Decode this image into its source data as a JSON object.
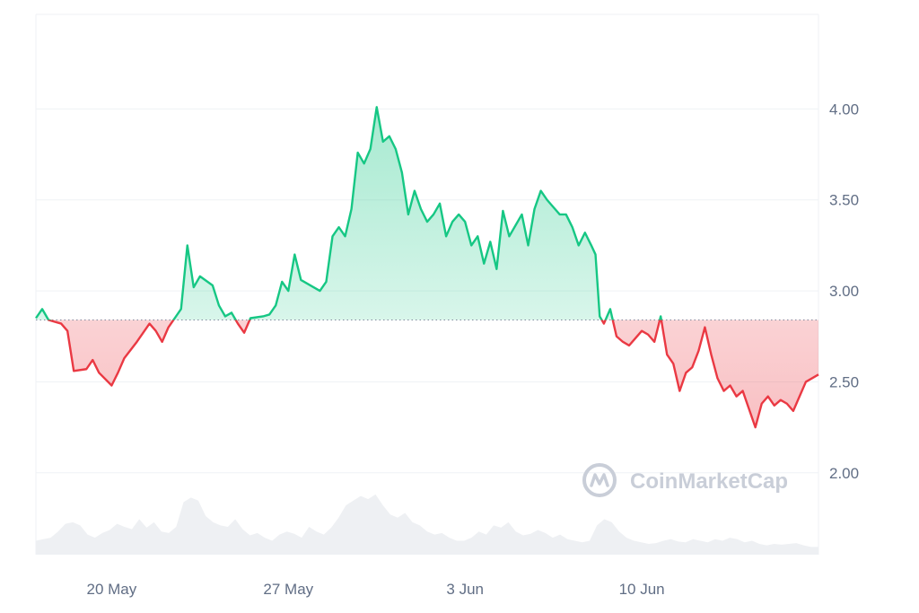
{
  "colors": {
    "up": "#16c784",
    "down": "#ea3943",
    "up_fill_top": "#16c784",
    "down_fill_bottom": "#ea3943",
    "grid": "#eff2f5",
    "baseline": "#808a9d",
    "volume": "#eef0f3",
    "axis_text": "#616e85",
    "watermark": "#c9ced8"
  },
  "watermark": {
    "text": "CoinMarketCap",
    "icon": "coinmarketcap-logo-icon"
  },
  "chart_data": {
    "type": "area",
    "title": "",
    "xlabel": "",
    "ylabel": "",
    "y_axis_position": "right",
    "ylim": [
      1.55,
      4.52
    ],
    "xlim": [
      "2024-05-17",
      "2024-06-17"
    ],
    "baseline": 2.84,
    "grid": true,
    "y_ticks": [
      2.0,
      2.5,
      3.0,
      3.5,
      4.0
    ],
    "y_tick_labels": [
      "2.00",
      "2.50",
      "3.00",
      "3.50",
      "4.00"
    ],
    "x_ticks": [
      {
        "date": "2024-05-20",
        "label": "20 May"
      },
      {
        "date": "2024-05-27",
        "label": "27 May"
      },
      {
        "date": "2024-06-03",
        "label": "3 Jun"
      },
      {
        "date": "2024-06-10",
        "label": "10 Jun"
      }
    ],
    "series": [
      {
        "values": [
          [
            "2024-05-17",
            2.85
          ],
          [
            "2024-05-17T06",
            2.9
          ],
          [
            "2024-05-17T12",
            2.84
          ],
          [
            "2024-05-18",
            2.82
          ],
          [
            "2024-05-18T06",
            2.78
          ],
          [
            "2024-05-18T12",
            2.56
          ],
          [
            "2024-05-19",
            2.57
          ],
          [
            "2024-05-19T06",
            2.62
          ],
          [
            "2024-05-19T12",
            2.55
          ],
          [
            "2024-05-20",
            2.48
          ],
          [
            "2024-05-20T06",
            2.55
          ],
          [
            "2024-05-20T12",
            2.63
          ],
          [
            "2024-05-21",
            2.72
          ],
          [
            "2024-05-21T06",
            2.77
          ],
          [
            "2024-05-21T12",
            2.82
          ],
          [
            "2024-05-21T18",
            2.78
          ],
          [
            "2024-05-22",
            2.72
          ],
          [
            "2024-05-22T06",
            2.8
          ],
          [
            "2024-05-22T12",
            2.85
          ],
          [
            "2024-05-22T18",
            2.9
          ],
          [
            "2024-05-23",
            3.25
          ],
          [
            "2024-05-23T06",
            3.02
          ],
          [
            "2024-05-23T12",
            3.08
          ],
          [
            "2024-05-24",
            3.03
          ],
          [
            "2024-05-24T06",
            2.92
          ],
          [
            "2024-05-24T12",
            2.86
          ],
          [
            "2024-05-24T18",
            2.88
          ],
          [
            "2024-05-25",
            2.82
          ],
          [
            "2024-05-25T06",
            2.77
          ],
          [
            "2024-05-25T12",
            2.85
          ],
          [
            "2024-05-26",
            2.86
          ],
          [
            "2024-05-26T06",
            2.87
          ],
          [
            "2024-05-26T12",
            2.92
          ],
          [
            "2024-05-26T18",
            3.05
          ],
          [
            "2024-05-27",
            3.0
          ],
          [
            "2024-05-27T06",
            3.2
          ],
          [
            "2024-05-27T12",
            3.06
          ],
          [
            "2024-05-28",
            3.02
          ],
          [
            "2024-05-28T06",
            3.0
          ],
          [
            "2024-05-28T12",
            3.05
          ],
          [
            "2024-05-28T18",
            3.3
          ],
          [
            "2024-05-29",
            3.35
          ],
          [
            "2024-05-29T06",
            3.3
          ],
          [
            "2024-05-29T12",
            3.45
          ],
          [
            "2024-05-29T18",
            3.76
          ],
          [
            "2024-05-30",
            3.7
          ],
          [
            "2024-05-30T06",
            3.78
          ],
          [
            "2024-05-30T12",
            4.01
          ],
          [
            "2024-05-30T18",
            3.82
          ],
          [
            "2024-05-31",
            3.85
          ],
          [
            "2024-05-31T06",
            3.78
          ],
          [
            "2024-05-31T12",
            3.65
          ],
          [
            "2024-05-31T18",
            3.42
          ],
          [
            "2024-06-01",
            3.55
          ],
          [
            "2024-06-01T06",
            3.45
          ],
          [
            "2024-06-01T12",
            3.38
          ],
          [
            "2024-06-01T18",
            3.42
          ],
          [
            "2024-06-02",
            3.48
          ],
          [
            "2024-06-02T06",
            3.3
          ],
          [
            "2024-06-02T12",
            3.38
          ],
          [
            "2024-06-02T18",
            3.42
          ],
          [
            "2024-06-03",
            3.38
          ],
          [
            "2024-06-03T06",
            3.25
          ],
          [
            "2024-06-03T12",
            3.3
          ],
          [
            "2024-06-03T18",
            3.15
          ],
          [
            "2024-06-04",
            3.27
          ],
          [
            "2024-06-04T06",
            3.12
          ],
          [
            "2024-06-04T12",
            3.44
          ],
          [
            "2024-06-04T18",
            3.3
          ],
          [
            "2024-06-05",
            3.36
          ],
          [
            "2024-06-05T06",
            3.42
          ],
          [
            "2024-06-05T12",
            3.25
          ],
          [
            "2024-06-05T18",
            3.45
          ],
          [
            "2024-06-06",
            3.55
          ],
          [
            "2024-06-06T06",
            3.5
          ],
          [
            "2024-06-06T12",
            3.46
          ],
          [
            "2024-06-06T18",
            3.42
          ],
          [
            "2024-06-07",
            3.42
          ],
          [
            "2024-06-07T06",
            3.35
          ],
          [
            "2024-06-07T12",
            3.25
          ],
          [
            "2024-06-07T18",
            3.32
          ],
          [
            "2024-06-08",
            3.25
          ],
          [
            "2024-06-08T04",
            3.2
          ],
          [
            "2024-06-08T08",
            2.86
          ],
          [
            "2024-06-08T12",
            2.82
          ],
          [
            "2024-06-08T18",
            2.9
          ],
          [
            "2024-06-09",
            2.75
          ],
          [
            "2024-06-09T06",
            2.72
          ],
          [
            "2024-06-09T12",
            2.7
          ],
          [
            "2024-06-09T18",
            2.74
          ],
          [
            "2024-06-10",
            2.78
          ],
          [
            "2024-06-10T06",
            2.76
          ],
          [
            "2024-06-10T12",
            2.72
          ],
          [
            "2024-06-10T18",
            2.86
          ],
          [
            "2024-06-11",
            2.65
          ],
          [
            "2024-06-11T06",
            2.6
          ],
          [
            "2024-06-11T12",
            2.45
          ],
          [
            "2024-06-11T18",
            2.55
          ],
          [
            "2024-06-12",
            2.58
          ],
          [
            "2024-06-12T06",
            2.67
          ],
          [
            "2024-06-12T12",
            2.8
          ],
          [
            "2024-06-12T18",
            2.65
          ],
          [
            "2024-06-13",
            2.52
          ],
          [
            "2024-06-13T06",
            2.45
          ],
          [
            "2024-06-13T12",
            2.48
          ],
          [
            "2024-06-13T18",
            2.42
          ],
          [
            "2024-06-14",
            2.45
          ],
          [
            "2024-06-14T06",
            2.35
          ],
          [
            "2024-06-14T12",
            2.25
          ],
          [
            "2024-06-14T18",
            2.38
          ],
          [
            "2024-06-15",
            2.42
          ],
          [
            "2024-06-15T06",
            2.37
          ],
          [
            "2024-06-15T12",
            2.4
          ],
          [
            "2024-06-15T18",
            2.38
          ],
          [
            "2024-06-16",
            2.34
          ],
          [
            "2024-06-16T06",
            2.42
          ],
          [
            "2024-06-16T12",
            2.5
          ],
          [
            "2024-06-17",
            2.54
          ]
        ]
      }
    ],
    "volume": [
      0.18,
      0.2,
      0.22,
      0.3,
      0.4,
      0.42,
      0.38,
      0.26,
      0.22,
      0.28,
      0.32,
      0.4,
      0.36,
      0.33,
      0.46,
      0.35,
      0.42,
      0.3,
      0.28,
      0.36,
      0.68,
      0.74,
      0.7,
      0.5,
      0.42,
      0.38,
      0.36,
      0.46,
      0.33,
      0.25,
      0.28,
      0.22,
      0.18,
      0.26,
      0.3,
      0.27,
      0.22,
      0.36,
      0.3,
      0.26,
      0.35,
      0.48,
      0.64,
      0.7,
      0.76,
      0.72,
      0.78,
      0.64,
      0.52,
      0.48,
      0.54,
      0.42,
      0.38,
      0.3,
      0.26,
      0.28,
      0.22,
      0.18,
      0.18,
      0.22,
      0.3,
      0.26,
      0.38,
      0.35,
      0.42,
      0.3,
      0.25,
      0.27,
      0.32,
      0.28,
      0.22,
      0.26,
      0.2,
      0.18,
      0.16,
      0.18,
      0.38,
      0.46,
      0.42,
      0.3,
      0.22,
      0.18,
      0.16,
      0.14,
      0.15,
      0.18,
      0.2,
      0.17,
      0.16,
      0.2,
      0.18,
      0.16,
      0.2,
      0.18,
      0.22,
      0.2,
      0.16,
      0.18,
      0.14,
      0.12,
      0.14,
      0.13,
      0.14,
      0.15,
      0.12,
      0.1,
      0.1
    ],
    "volume_max": 1.0
  }
}
